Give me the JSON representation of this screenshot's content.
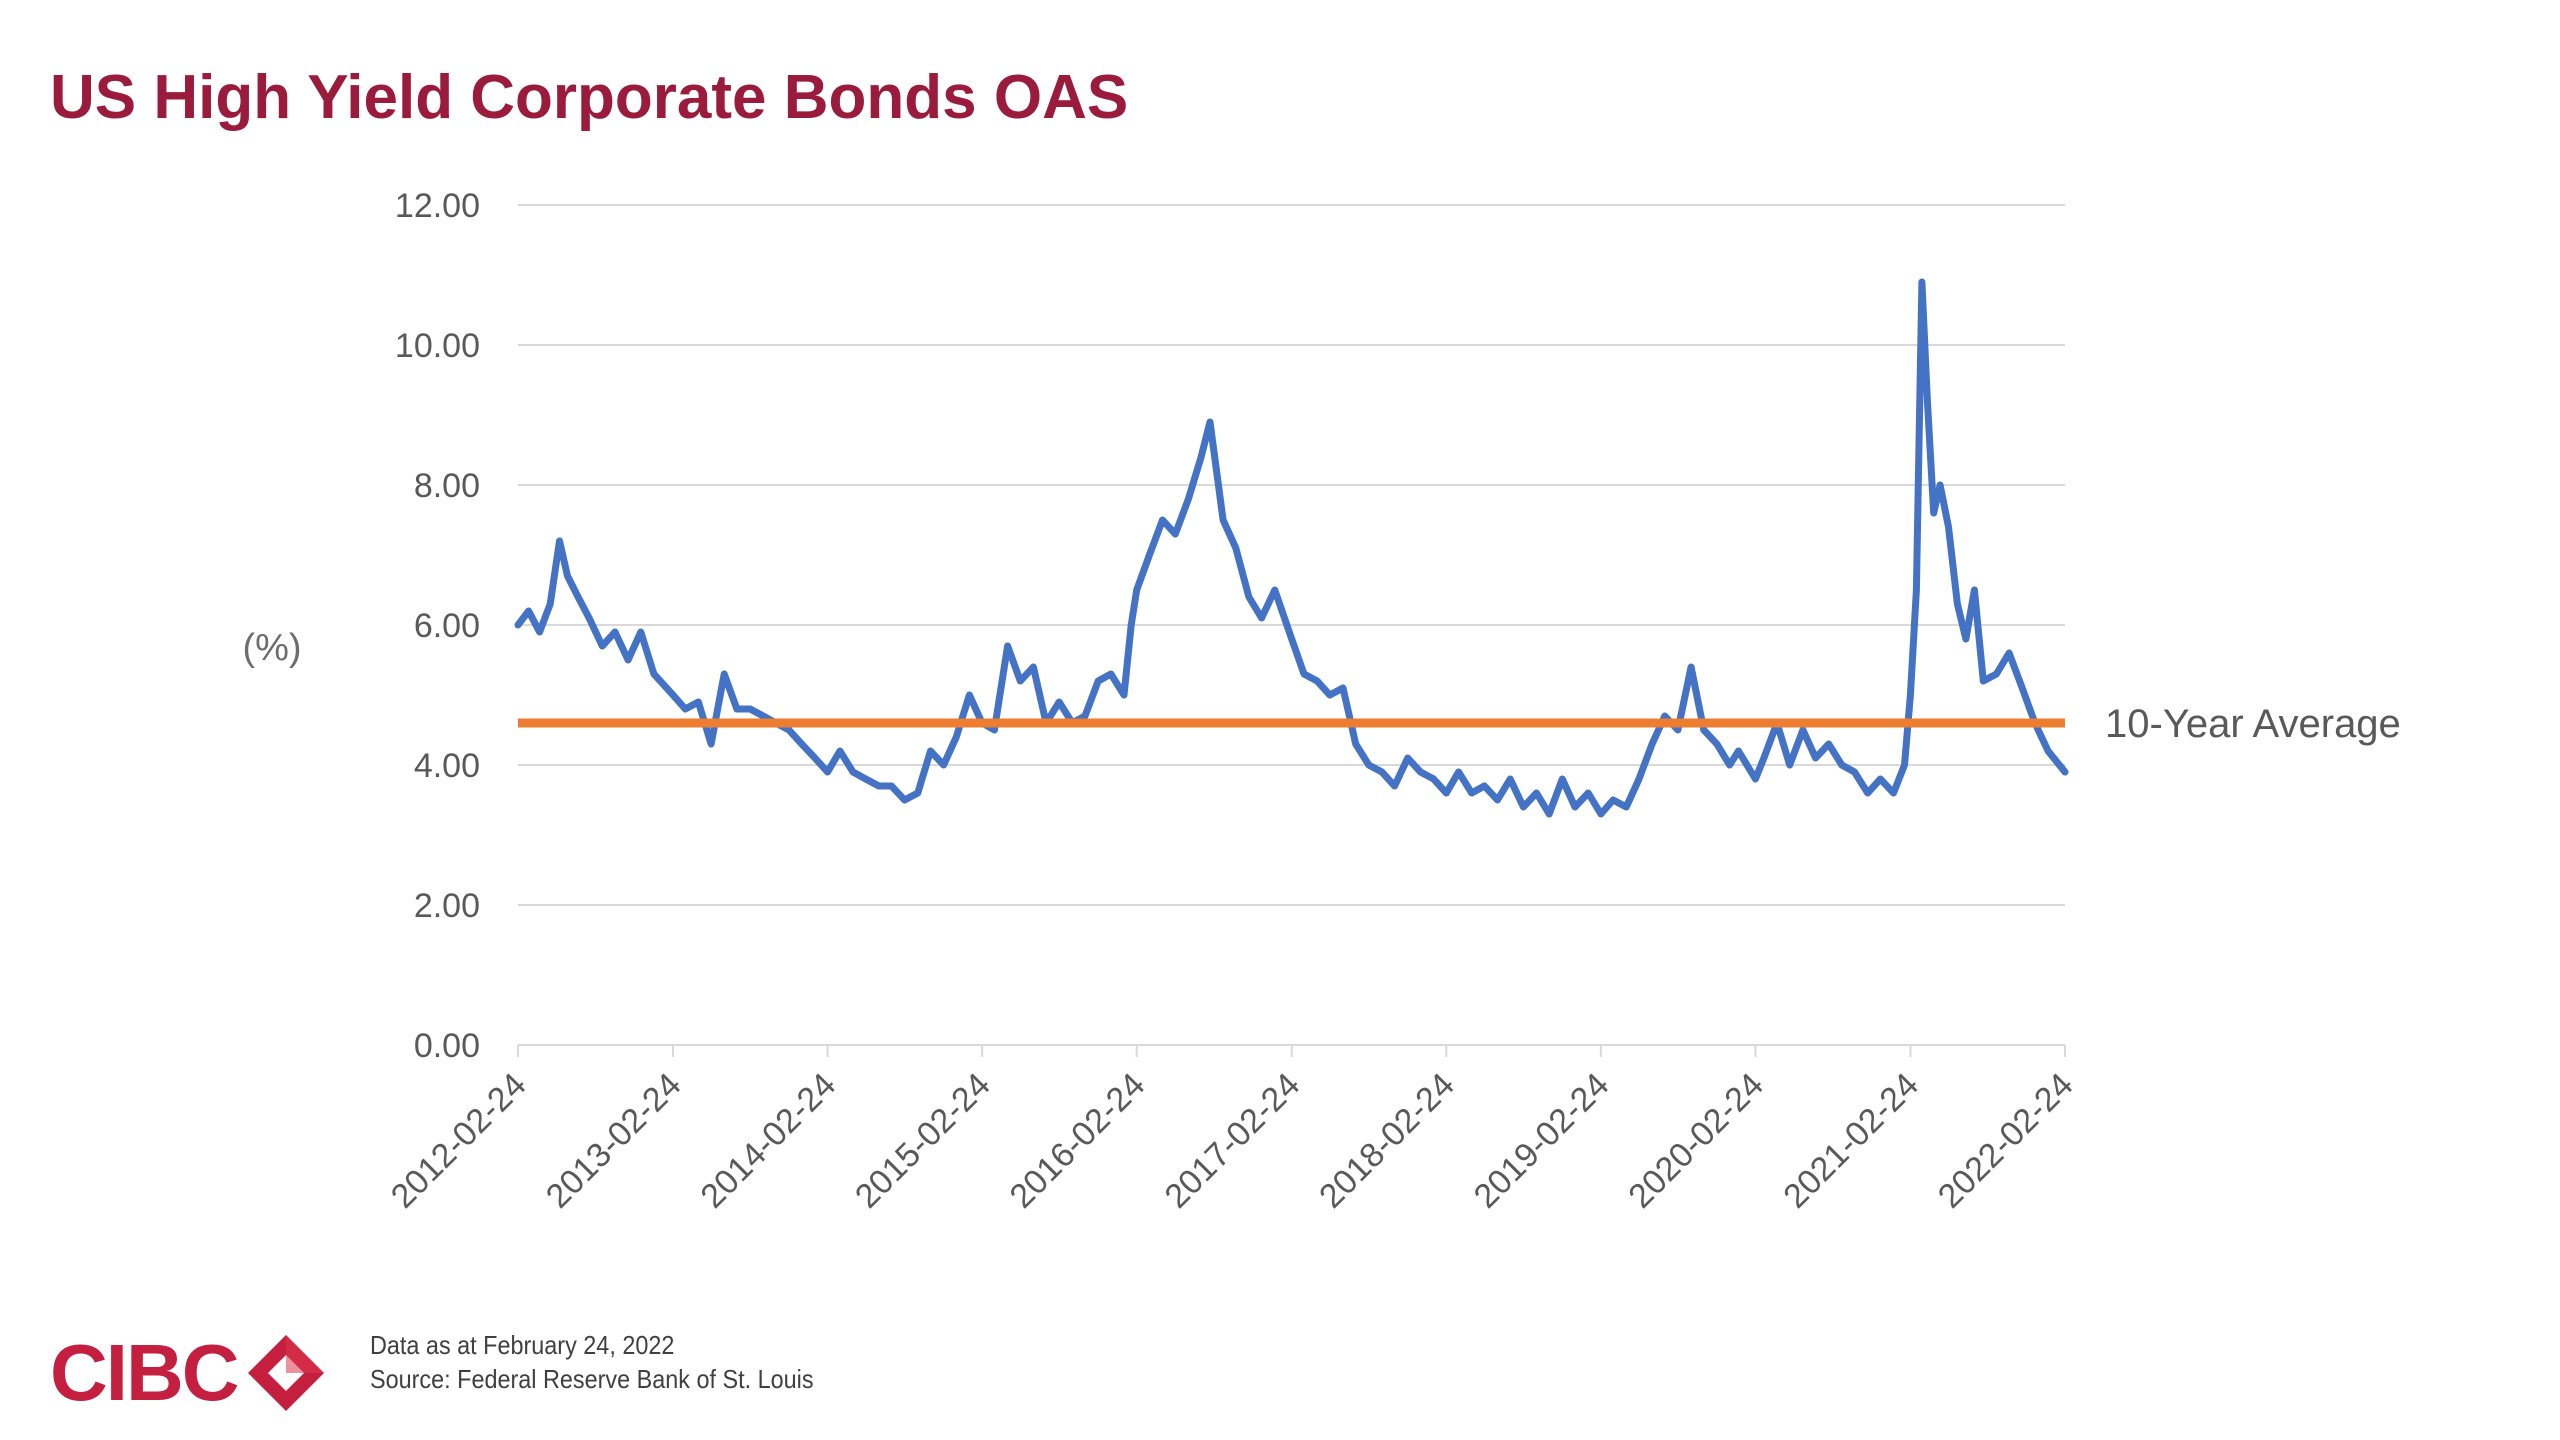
{
  "title": "US High Yield Corporate Bonds OAS",
  "footer": {
    "logo_text": "CIBC",
    "data_note": "Data as at February 24, 2022",
    "source_note": "Source: Federal Reserve Bank of St. Louis"
  },
  "colors": {
    "title": "#9b1b3c",
    "series": "#4472c4",
    "average": "#ed7d31",
    "logo": "#c41f3e",
    "grid": "#d9d9d9"
  },
  "chart_data": {
    "type": "line",
    "title": "US High Yield Corporate Bonds OAS",
    "ylabel": "(%)",
    "xlabel": "",
    "ylim": [
      0,
      12
    ],
    "xlim": [
      "2012-02-24",
      "2022-02-24"
    ],
    "grid": true,
    "y_ticks": [
      "0.00",
      "2.00",
      "4.00",
      "6.00",
      "8.00",
      "10.00",
      "12.00"
    ],
    "x_ticks": [
      "2012-02-24",
      "2013-02-24",
      "2014-02-24",
      "2015-02-24",
      "2016-02-24",
      "2017-02-24",
      "2018-02-24",
      "2019-02-24",
      "2020-02-24",
      "2021-02-24",
      "2022-02-24"
    ],
    "series": [
      {
        "values": [
          [
            "2012-02-24",
            6.0
          ],
          [
            "2012-03-20",
            6.2
          ],
          [
            "2012-04-15",
            5.9
          ],
          [
            "2012-05-10",
            6.3
          ],
          [
            "2012-06-01",
            7.2
          ],
          [
            "2012-06-20",
            6.7
          ],
          [
            "2012-07-15",
            6.4
          ],
          [
            "2012-08-10",
            6.1
          ],
          [
            "2012-09-10",
            5.7
          ],
          [
            "2012-10-10",
            5.9
          ],
          [
            "2012-11-10",
            5.5
          ],
          [
            "2012-12-10",
            5.9
          ],
          [
            "2013-01-10",
            5.3
          ],
          [
            "2013-02-24",
            5.0
          ],
          [
            "2013-03-25",
            4.8
          ],
          [
            "2013-04-25",
            4.9
          ],
          [
            "2013-05-25",
            4.3
          ],
          [
            "2013-06-25",
            5.3
          ],
          [
            "2013-07-25",
            4.8
          ],
          [
            "2013-08-25",
            4.8
          ],
          [
            "2013-09-25",
            4.7
          ],
          [
            "2013-10-25",
            4.6
          ],
          [
            "2013-11-25",
            4.5
          ],
          [
            "2013-12-25",
            4.3
          ],
          [
            "2014-01-25",
            4.1
          ],
          [
            "2014-02-24",
            3.9
          ],
          [
            "2014-03-25",
            4.2
          ],
          [
            "2014-04-25",
            3.9
          ],
          [
            "2014-05-25",
            3.8
          ],
          [
            "2014-06-25",
            3.7
          ],
          [
            "2014-07-25",
            3.7
          ],
          [
            "2014-08-25",
            3.5
          ],
          [
            "2014-09-25",
            3.6
          ],
          [
            "2014-10-25",
            4.2
          ],
          [
            "2014-11-25",
            4.0
          ],
          [
            "2014-12-25",
            4.4
          ],
          [
            "2015-01-25",
            5.0
          ],
          [
            "2015-02-24",
            4.6
          ],
          [
            "2015-03-25",
            4.5
          ],
          [
            "2015-04-25",
            5.7
          ],
          [
            "2015-05-25",
            5.2
          ],
          [
            "2015-06-25",
            5.4
          ],
          [
            "2015-07-25",
            4.6
          ],
          [
            "2015-08-25",
            4.9
          ],
          [
            "2015-09-25",
            4.6
          ],
          [
            "2015-10-25",
            4.7
          ],
          [
            "2015-11-25",
            5.2
          ],
          [
            "2015-12-25",
            5.3
          ],
          [
            "2016-01-25",
            5.0
          ],
          [
            "2016-02-11",
            6.0
          ],
          [
            "2016-02-24",
            6.5
          ],
          [
            "2016-03-25",
            7.0
          ],
          [
            "2016-04-25",
            7.5
          ],
          [
            "2016-05-25",
            7.3
          ],
          [
            "2016-06-25",
            7.8
          ],
          [
            "2016-07-25",
            8.4
          ],
          [
            "2016-08-15",
            8.9
          ],
          [
            "2016-09-15",
            7.5
          ],
          [
            "2016-10-15",
            7.1
          ],
          [
            "2016-11-15",
            6.4
          ],
          [
            "2016-12-15",
            6.1
          ],
          [
            "2017-01-15",
            6.5
          ],
          [
            "2017-02-24",
            5.8
          ],
          [
            "2017-03-25",
            5.3
          ],
          [
            "2017-04-25",
            5.2
          ],
          [
            "2017-05-25",
            5.0
          ],
          [
            "2017-06-25",
            5.1
          ],
          [
            "2017-07-25",
            4.3
          ],
          [
            "2017-08-25",
            4.0
          ],
          [
            "2017-09-25",
            3.9
          ],
          [
            "2017-10-25",
            3.7
          ],
          [
            "2017-11-25",
            4.1
          ],
          [
            "2017-12-25",
            3.9
          ],
          [
            "2018-01-25",
            3.8
          ],
          [
            "2018-02-24",
            3.6
          ],
          [
            "2018-03-25",
            3.9
          ],
          [
            "2018-04-25",
            3.6
          ],
          [
            "2018-05-25",
            3.7
          ],
          [
            "2018-06-25",
            3.5
          ],
          [
            "2018-07-25",
            3.8
          ],
          [
            "2018-08-25",
            3.4
          ],
          [
            "2018-09-25",
            3.6
          ],
          [
            "2018-10-25",
            3.3
          ],
          [
            "2018-11-25",
            3.8
          ],
          [
            "2018-12-25",
            3.4
          ],
          [
            "2019-01-25",
            3.6
          ],
          [
            "2019-02-24",
            3.3
          ],
          [
            "2019-03-25",
            3.5
          ],
          [
            "2019-04-25",
            3.4
          ],
          [
            "2019-05-25",
            3.8
          ],
          [
            "2019-06-25",
            4.3
          ],
          [
            "2019-07-25",
            4.7
          ],
          [
            "2019-08-25",
            4.5
          ],
          [
            "2019-09-25",
            5.4
          ],
          [
            "2019-10-25",
            4.5
          ],
          [
            "2019-11-25",
            4.3
          ],
          [
            "2019-12-25",
            4.0
          ],
          [
            "2020-01-15",
            4.2
          ],
          [
            "2020-02-24",
            3.8
          ],
          [
            "2020-03-15",
            4.1
          ],
          [
            "2020-04-15",
            4.6
          ],
          [
            "2020-05-15",
            4.0
          ],
          [
            "2020-06-15",
            4.5
          ],
          [
            "2020-07-15",
            4.1
          ],
          [
            "2020-08-15",
            4.3
          ],
          [
            "2020-09-15",
            4.0
          ],
          [
            "2020-10-15",
            3.9
          ],
          [
            "2020-11-15",
            3.6
          ],
          [
            "2020-12-15",
            3.8
          ],
          [
            "2021-01-15",
            3.6
          ],
          [
            "2021-02-10",
            4.0
          ],
          [
            "2021-02-24",
            5.0
          ],
          [
            "2021-03-10",
            6.5
          ],
          [
            "2021-03-23",
            10.9
          ],
          [
            "2021-04-05",
            9.2
          ],
          [
            "2021-04-20",
            7.6
          ],
          [
            "2021-05-05",
            8.0
          ],
          [
            "2021-05-25",
            7.4
          ],
          [
            "2021-06-15",
            6.3
          ],
          [
            "2021-07-05",
            5.8
          ],
          [
            "2021-07-25",
            6.5
          ],
          [
            "2021-08-15",
            5.2
          ],
          [
            "2021-09-15",
            5.3
          ],
          [
            "2021-10-15",
            5.6
          ],
          [
            "2021-11-15",
            5.1
          ],
          [
            "2021-12-15",
            4.6
          ],
          [
            "2022-01-15",
            4.2
          ],
          [
            "2022-02-24",
            3.9
          ]
        ]
      },
      {
        "name": "10-Year Average",
        "type": "horizontal-line",
        "value": 4.6
      }
    ]
  }
}
